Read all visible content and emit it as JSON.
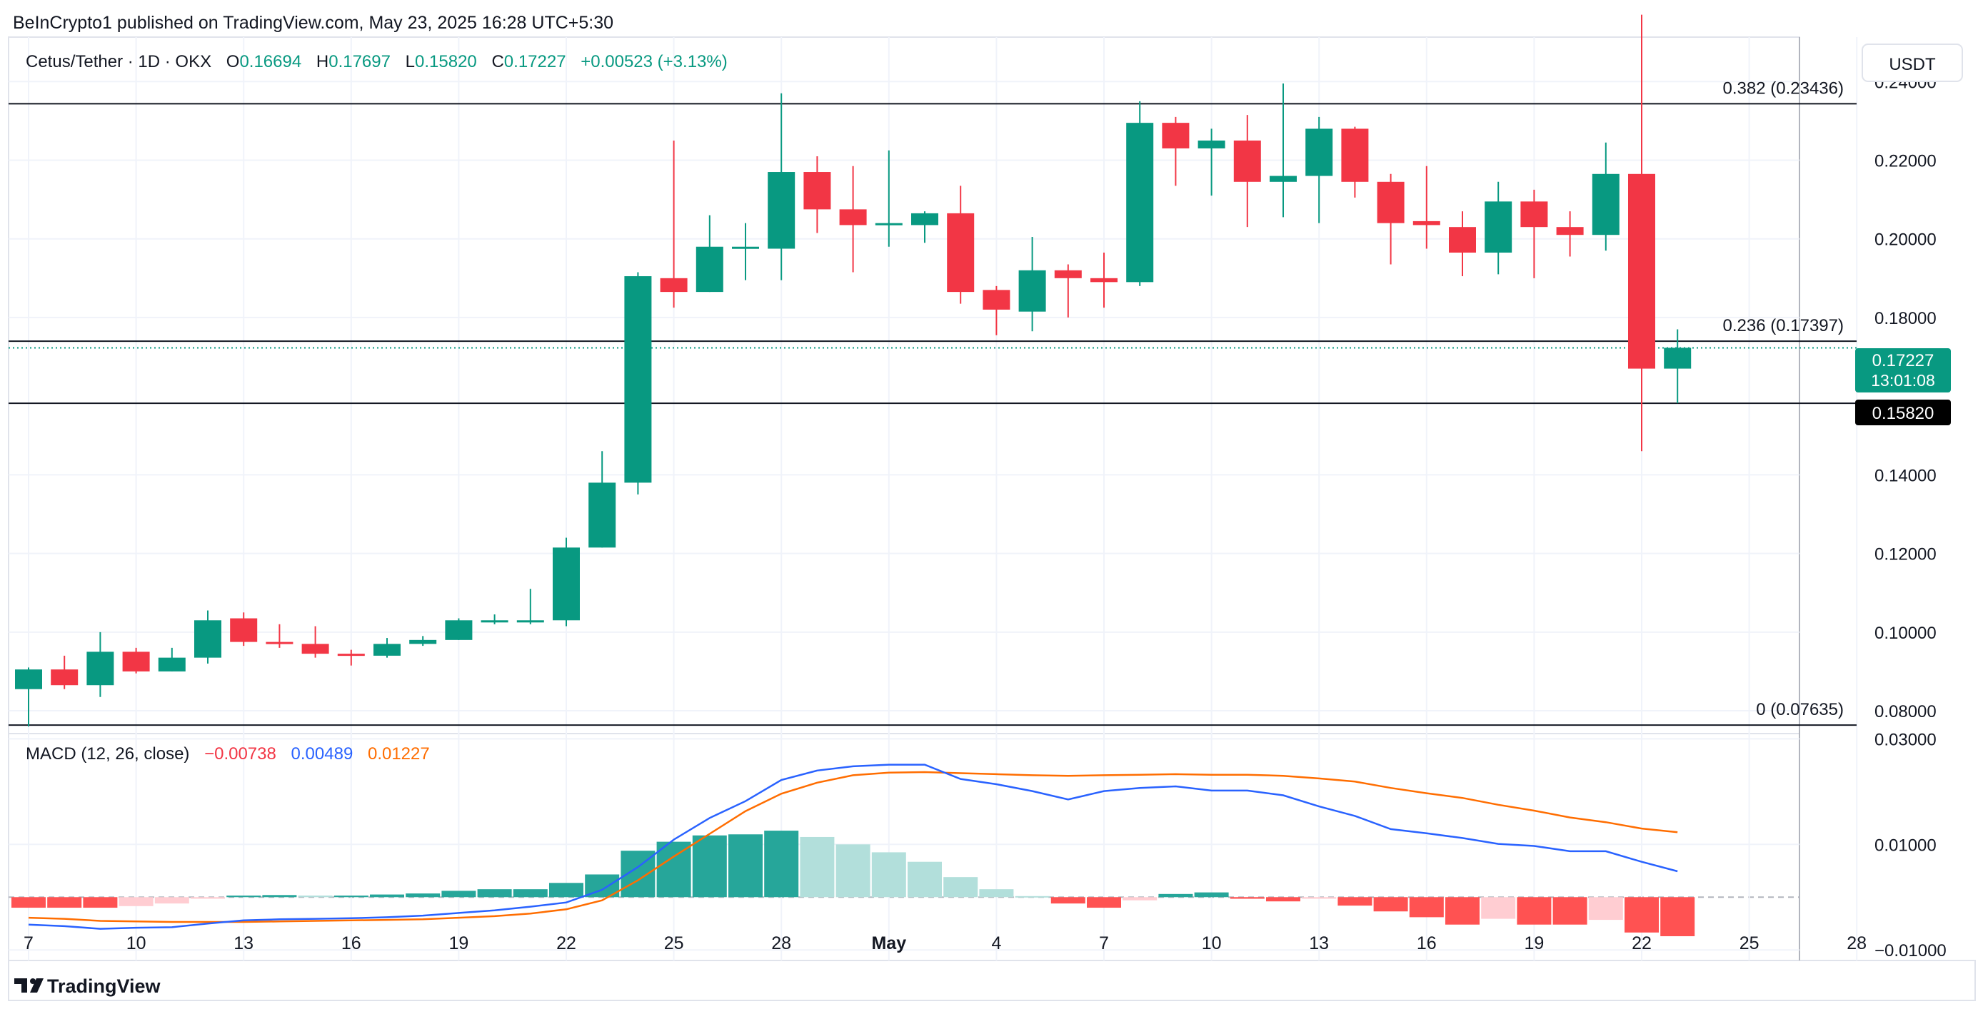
{
  "header": {
    "published": "BeInCrypto1 published on TradingView.com, May 23, 2025 16:28 UTC+5:30",
    "symbol": "Cetus/Tether · 1D · OKX",
    "ohlc": [
      {
        "key": "O",
        "value": "0.16694"
      },
      {
        "key": "H",
        "value": "0.17697"
      },
      {
        "key": "L",
        "value": "0.15820"
      },
      {
        "key": "C",
        "value": "0.17227"
      }
    ],
    "change": "+0.00523 (+3.13%)",
    "currency": "USDT"
  },
  "colors": {
    "up": "#089981",
    "down": "#f23645",
    "macd": "#2962ff",
    "signal": "#ff6d00",
    "hist_up_strong": "#26a69a",
    "hist_up_weak": "#b2dfdb",
    "hist_down_strong": "#ff5252",
    "hist_down_weak": "#ffcdd2"
  },
  "price_badge": {
    "price": "0.17227",
    "countdown": "13:01:08"
  },
  "low_badge": "0.15820",
  "footer": {
    "brand": "TradingView"
  },
  "chart_data": [
    {
      "type": "candlestick",
      "title": "Cetus/Tether · 1D · OKX",
      "ylabel": "USDT",
      "ylim": [
        0.0742,
        0.2513
      ],
      "y_ticks": [
        "0.24000",
        "0.22000",
        "0.20000",
        "0.18000",
        "0.14000",
        "0.12000",
        "0.10000",
        "0.08000"
      ],
      "x_ticks": [
        {
          "label": "7",
          "bar": 0
        },
        {
          "label": "10",
          "bar": 3
        },
        {
          "label": "13",
          "bar": 6
        },
        {
          "label": "16",
          "bar": 9
        },
        {
          "label": "19",
          "bar": 12
        },
        {
          "label": "22",
          "bar": 15
        },
        {
          "label": "25",
          "bar": 18
        },
        {
          "label": "28",
          "bar": 21
        },
        {
          "label": "May",
          "bar": 24
        },
        {
          "label": "4",
          "bar": 27
        },
        {
          "label": "7",
          "bar": 30
        },
        {
          "label": "10",
          "bar": 33
        },
        {
          "label": "13",
          "bar": 36
        },
        {
          "label": "16",
          "bar": 39
        },
        {
          "label": "19",
          "bar": 42
        },
        {
          "label": "22",
          "bar": 45
        },
        {
          "label": "25",
          "bar": 48
        },
        {
          "label": "28",
          "bar": 51
        }
      ],
      "candles": [
        [
          0.0855,
          0.0905,
          0.076,
          0.091
        ],
        [
          0.0905,
          0.0865,
          0.0855,
          0.094
        ],
        [
          0.0865,
          0.095,
          0.0835,
          0.1
        ],
        [
          0.095,
          0.09,
          0.0895,
          0.096
        ],
        [
          0.09,
          0.0935,
          0.09,
          0.096
        ],
        [
          0.0935,
          0.103,
          0.092,
          0.1055
        ],
        [
          0.1035,
          0.0975,
          0.0965,
          0.105
        ],
        [
          0.0975,
          0.097,
          0.096,
          0.102
        ],
        [
          0.097,
          0.0945,
          0.0935,
          0.1015
        ],
        [
          0.0945,
          0.094,
          0.0915,
          0.0955
        ],
        [
          0.094,
          0.097,
          0.0935,
          0.0985
        ],
        [
          0.097,
          0.098,
          0.0965,
          0.099
        ],
        [
          0.098,
          0.103,
          0.098,
          0.1035
        ],
        [
          0.103,
          0.103,
          0.102,
          0.1045
        ],
        [
          0.103,
          0.103,
          0.102,
          0.111
        ],
        [
          0.103,
          0.1215,
          0.1015,
          0.124
        ],
        [
          0.1215,
          0.138,
          0.1215,
          0.146
        ],
        [
          0.138,
          0.1905,
          0.135,
          0.1915
        ],
        [
          0.19,
          0.1865,
          0.1825,
          0.225
        ],
        [
          0.1865,
          0.198,
          0.1865,
          0.206
        ],
        [
          0.198,
          0.198,
          0.1895,
          0.204
        ],
        [
          0.1975,
          0.217,
          0.1895,
          0.237
        ],
        [
          0.217,
          0.2075,
          0.2015,
          0.221
        ],
        [
          0.2075,
          0.2035,
          0.1915,
          0.2185
        ],
        [
          0.204,
          0.204,
          0.198,
          0.2225
        ],
        [
          0.2035,
          0.2065,
          0.199,
          0.207
        ],
        [
          0.2065,
          0.1865,
          0.1835,
          0.2135
        ],
        [
          0.187,
          0.182,
          0.1755,
          0.188
        ],
        [
          0.1815,
          0.192,
          0.1765,
          0.2005
        ],
        [
          0.192,
          0.19,
          0.18,
          0.1935
        ],
        [
          0.19,
          0.189,
          0.1825,
          0.1965
        ],
        [
          0.189,
          0.2295,
          0.188,
          0.235
        ],
        [
          0.2295,
          0.223,
          0.2135,
          0.231
        ],
        [
          0.223,
          0.225,
          0.211,
          0.228
        ],
        [
          0.225,
          0.2145,
          0.203,
          0.2315
        ],
        [
          0.2145,
          0.216,
          0.2055,
          0.2395
        ],
        [
          0.216,
          0.228,
          0.204,
          0.231
        ],
        [
          0.228,
          0.2145,
          0.2105,
          0.2285
        ],
        [
          0.2145,
          0.204,
          0.1935,
          0.2165
        ],
        [
          0.2045,
          0.2035,
          0.1975,
          0.2185
        ],
        [
          0.203,
          0.1965,
          0.1905,
          0.207
        ],
        [
          0.1965,
          0.2095,
          0.191,
          0.2145
        ],
        [
          0.2095,
          0.203,
          0.19,
          0.2125
        ],
        [
          0.203,
          0.201,
          0.1955,
          0.207
        ],
        [
          0.201,
          0.2165,
          0.197,
          0.2245
        ],
        [
          0.2165,
          0.167,
          0.146,
          0.257
        ],
        [
          0.167,
          0.1723,
          0.1582,
          0.177
        ]
      ],
      "fib_levels": [
        {
          "label": "0.382 (0.23436)",
          "value": 0.23436
        },
        {
          "label": "0.236 (0.17397)",
          "value": 0.17397
        },
        {
          "label": "0 (0.07635)",
          "value": 0.07635
        }
      ],
      "horizontal_line": 0.1582,
      "last_price": 0.17227,
      "grid": true
    },
    {
      "type": "macd",
      "title": "MACD (12, 26, close)",
      "values": [
        {
          "value": "−0.00738",
          "color": "#f23645"
        },
        {
          "value": "0.00489",
          "color": "#2962ff"
        },
        {
          "value": "0.01227",
          "color": "#ff6d00"
        }
      ],
      "ylim": [
        -0.012,
        0.031
      ],
      "y_ticks": [
        "0.03000",
        "0.01000",
        "−0.01000"
      ],
      "histogram": [
        -0.002,
        -0.002,
        -0.002,
        -0.0017,
        -0.0012,
        -0.0003,
        0.0003,
        0.0004,
        0.0003,
        0.0003,
        0.0005,
        0.0007,
        0.0012,
        0.0015,
        0.0015,
        0.0027,
        0.0043,
        0.0088,
        0.0105,
        0.0117,
        0.0119,
        0.0126,
        0.0114,
        0.01,
        0.0085,
        0.0067,
        0.0038,
        0.0015,
        0.0002,
        -0.0012,
        -0.002,
        -0.0006,
        0.0006,
        0.0009,
        -0.0003,
        -0.0008,
        -0.0003,
        -0.0016,
        -0.0027,
        -0.0038,
        -0.0052,
        -0.0041,
        -0.0052,
        -0.0052,
        -0.0043,
        -0.0067,
        -0.0074
      ],
      "macd": [
        -0.0052,
        -0.0055,
        -0.006,
        -0.0058,
        -0.0057,
        -0.005,
        -0.0044,
        -0.0042,
        -0.0041,
        -0.004,
        -0.0038,
        -0.0035,
        -0.003,
        -0.0025,
        -0.0018,
        -0.001,
        0.0014,
        0.0057,
        0.0109,
        0.015,
        0.0182,
        0.0222,
        0.024,
        0.0248,
        0.0251,
        0.0251,
        0.0224,
        0.0214,
        0.0201,
        0.0185,
        0.0201,
        0.0207,
        0.021,
        0.0202,
        0.0202,
        0.0193,
        0.0172,
        0.0154,
        0.0129,
        0.0121,
        0.0112,
        0.0101,
        0.0097,
        0.0087,
        0.0087,
        0.0067,
        0.0049
      ],
      "signal": [
        -0.0039,
        -0.0041,
        -0.0045,
        -0.0046,
        -0.0047,
        -0.0047,
        -0.0047,
        -0.0046,
        -0.0045,
        -0.0044,
        -0.0043,
        -0.0042,
        -0.0039,
        -0.0036,
        -0.0031,
        -0.0023,
        -0.0006,
        0.0032,
        0.0077,
        0.012,
        0.0163,
        0.0196,
        0.0217,
        0.0231,
        0.0236,
        0.0237,
        0.0235,
        0.0233,
        0.0231,
        0.023,
        0.0231,
        0.0232,
        0.0233,
        0.0232,
        0.0232,
        0.023,
        0.0225,
        0.0219,
        0.0207,
        0.0197,
        0.0188,
        0.0175,
        0.0164,
        0.0151,
        0.0142,
        0.013,
        0.0123
      ]
    }
  ]
}
